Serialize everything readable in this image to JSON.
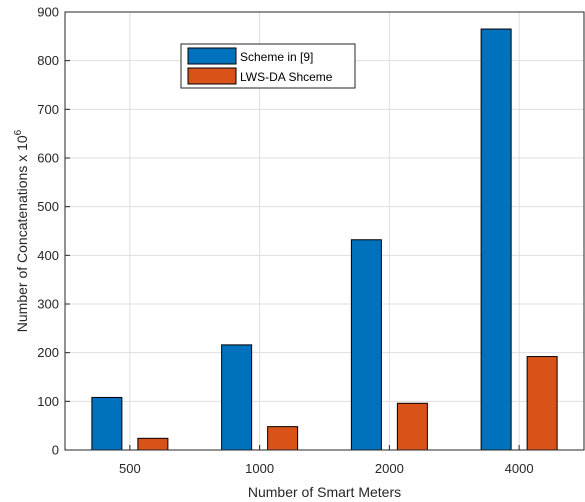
{
  "chart_data": {
    "type": "bar",
    "title": "",
    "xlabel": "Number of Smart Meters",
    "ylabel": "Number of Concatenations x 10",
    "ylabel_superscript": "6",
    "categories": [
      "500",
      "1000",
      "2000",
      "4000"
    ],
    "series": [
      {
        "name": "Scheme in [9]",
        "values": [
          108,
          216,
          432,
          865
        ],
        "color": "#0072BD"
      },
      {
        "name": "LWS-DA Shceme",
        "values": [
          24,
          48,
          96,
          192
        ],
        "color": "#D95319"
      }
    ],
    "ylim": [
      0,
      900
    ],
    "yticks": [
      0,
      100,
      200,
      300,
      400,
      500,
      600,
      700,
      800,
      900
    ],
    "grid": true,
    "legend_position": "top-center"
  }
}
